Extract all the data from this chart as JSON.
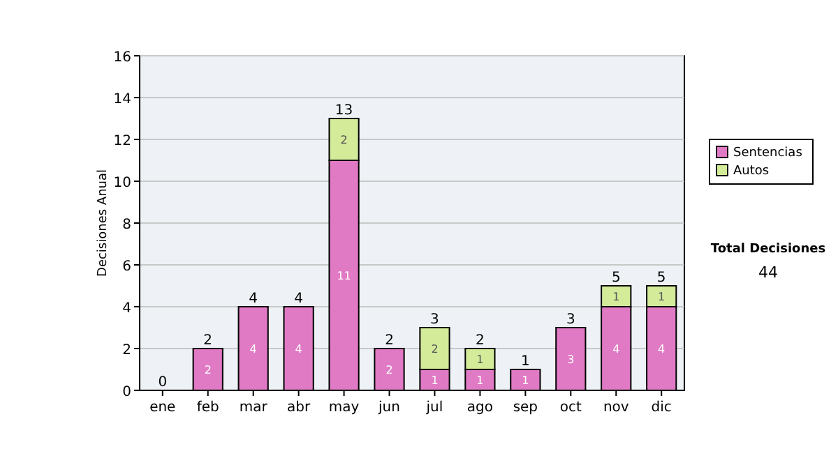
{
  "chart_data": {
    "type": "bar",
    "ylabel": "Decisiones Anual",
    "categories": [
      "ene",
      "feb",
      "mar",
      "abr",
      "may",
      "jun",
      "jul",
      "ago",
      "sep",
      "oct",
      "nov",
      "dic"
    ],
    "series": [
      {
        "name": "Sentencias",
        "color": "#e07ac4",
        "values": [
          0,
          2,
          4,
          4,
          11,
          2,
          1,
          1,
          1,
          3,
          4,
          4
        ],
        "value_labels": [
          null,
          "2",
          "4",
          "4",
          "11",
          "2",
          "1",
          "1",
          "1",
          "3",
          "4",
          "4"
        ]
      },
      {
        "name": "Autos",
        "color": "#d4eb9a",
        "values": [
          0,
          0,
          0,
          0,
          2,
          0,
          2,
          1,
          0,
          0,
          1,
          1
        ],
        "value_labels": [
          null,
          null,
          null,
          null,
          "2",
          null,
          "2",
          "1",
          null,
          null,
          "1",
          "1"
        ]
      }
    ],
    "stacked": true,
    "totals": [
      "0",
      "2",
      "4",
      "4",
      "13",
      "2",
      "3",
      "2",
      "1",
      "3",
      "5",
      "5"
    ],
    "ylim": [
      0,
      16
    ],
    "yticks": [
      0,
      2,
      4,
      6,
      8,
      10,
      12,
      14,
      16
    ],
    "grid": "y",
    "legend": "right",
    "annotations": [
      "Total Decisiones\n44"
    ]
  }
}
